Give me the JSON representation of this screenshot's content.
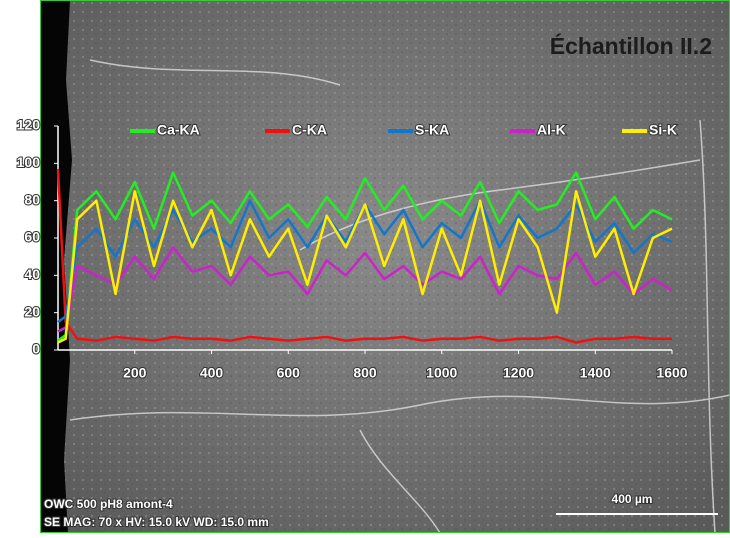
{
  "chart_data": {
    "type": "line",
    "title": "Échantillon II.2",
    "x": [
      0,
      20,
      50,
      100,
      150,
      200,
      250,
      300,
      350,
      400,
      450,
      500,
      550,
      600,
      650,
      700,
      750,
      800,
      850,
      900,
      950,
      1000,
      1050,
      1100,
      1150,
      1200,
      1250,
      1300,
      1350,
      1400,
      1450,
      1500,
      1550,
      1600
    ],
    "series": [
      {
        "name": "Ca-KA",
        "color": "#22ee22",
        "values": [
          5,
          8,
          75,
          85,
          70,
          90,
          65,
          95,
          72,
          80,
          68,
          85,
          70,
          78,
          66,
          82,
          70,
          92,
          75,
          88,
          70,
          80,
          72,
          90,
          68,
          85,
          75,
          78,
          95,
          70,
          82,
          65,
          75,
          70
        ]
      },
      {
        "name": "C-KA",
        "color": "#ee1111",
        "values": [
          97,
          15,
          6,
          5,
          7,
          6,
          5,
          7,
          6,
          6,
          5,
          7,
          6,
          5,
          6,
          7,
          5,
          6,
          6,
          7,
          5,
          6,
          6,
          7,
          5,
          6,
          6,
          7,
          4,
          6,
          6,
          7,
          6,
          6
        ]
      },
      {
        "name": "S-KA",
        "color": "#1177cc",
        "values": [
          15,
          18,
          55,
          65,
          50,
          70,
          55,
          75,
          58,
          65,
          55,
          80,
          60,
          70,
          55,
          72,
          58,
          78,
          62,
          75,
          55,
          68,
          60,
          80,
          55,
          72,
          60,
          65,
          78,
          58,
          68,
          52,
          62,
          58
        ]
      },
      {
        "name": "Al-K",
        "color": "#cc22cc",
        "values": [
          10,
          12,
          45,
          40,
          35,
          50,
          38,
          55,
          42,
          45,
          35,
          50,
          40,
          42,
          30,
          48,
          40,
          52,
          38,
          45,
          35,
          42,
          38,
          50,
          30,
          45,
          40,
          38,
          52,
          35,
          42,
          30,
          38,
          32
        ]
      },
      {
        "name": "Si-K",
        "color": "#ffee00",
        "values": [
          4,
          6,
          70,
          80,
          30,
          85,
          45,
          80,
          55,
          75,
          40,
          70,
          50,
          65,
          35,
          72,
          55,
          78,
          45,
          70,
          30,
          65,
          40,
          80,
          35,
          70,
          55,
          20,
          85,
          50,
          65,
          30,
          60,
          65
        ]
      }
    ],
    "xlim": [
      0,
      1600
    ],
    "xticks": [
      200,
      400,
      600,
      800,
      1000,
      1200,
      1400,
      1600
    ],
    "ylim": [
      0,
      120
    ],
    "yticks": [
      0,
      20,
      40,
      60,
      80,
      100,
      120
    ],
    "grid": false,
    "annotations": [
      "OWC 500 pH8 amont-4",
      "SE MAG: 70 x HV: 15.0 kV WD: 15.0 mm",
      "400 µm"
    ]
  }
}
